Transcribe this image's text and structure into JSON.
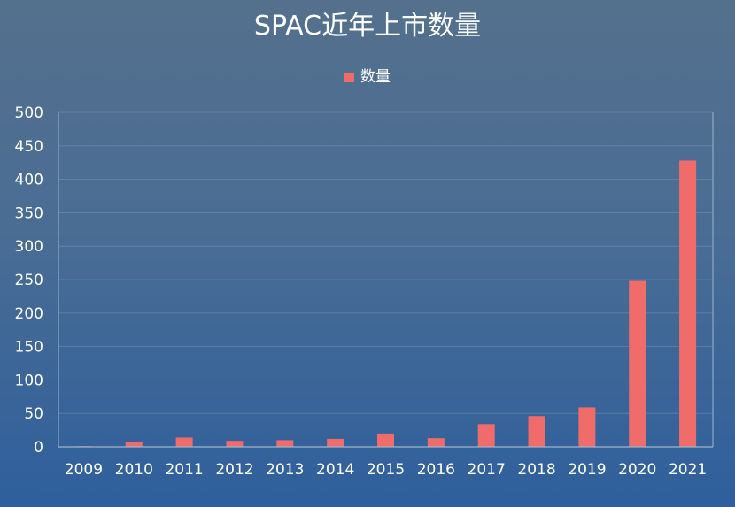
{
  "chart_data": {
    "type": "bar",
    "title": "SPAC近年上市数量",
    "categories": [
      "2009",
      "2010",
      "2011",
      "2012",
      "2013",
      "2014",
      "2015",
      "2016",
      "2017",
      "2018",
      "2019",
      "2020",
      "2021"
    ],
    "series": [
      {
        "name": "数量",
        "values": [
          1,
          7,
          14,
          9,
          10,
          12,
          20,
          13,
          34,
          46,
          59,
          248,
          428
        ],
        "color": "#ef6c6a"
      }
    ],
    "ylim": [
      0,
      500
    ],
    "y_ticks": [
      "0",
      "50",
      "100",
      "150",
      "200",
      "250",
      "300",
      "350",
      "400",
      "450",
      "500"
    ],
    "xlabel": "",
    "ylabel": "",
    "grid": true,
    "legend_position": "top-center"
  },
  "colors": {
    "bar": "#ef6c6a",
    "gridline": "#7f9bbb",
    "axis": "#9fb4cc"
  }
}
